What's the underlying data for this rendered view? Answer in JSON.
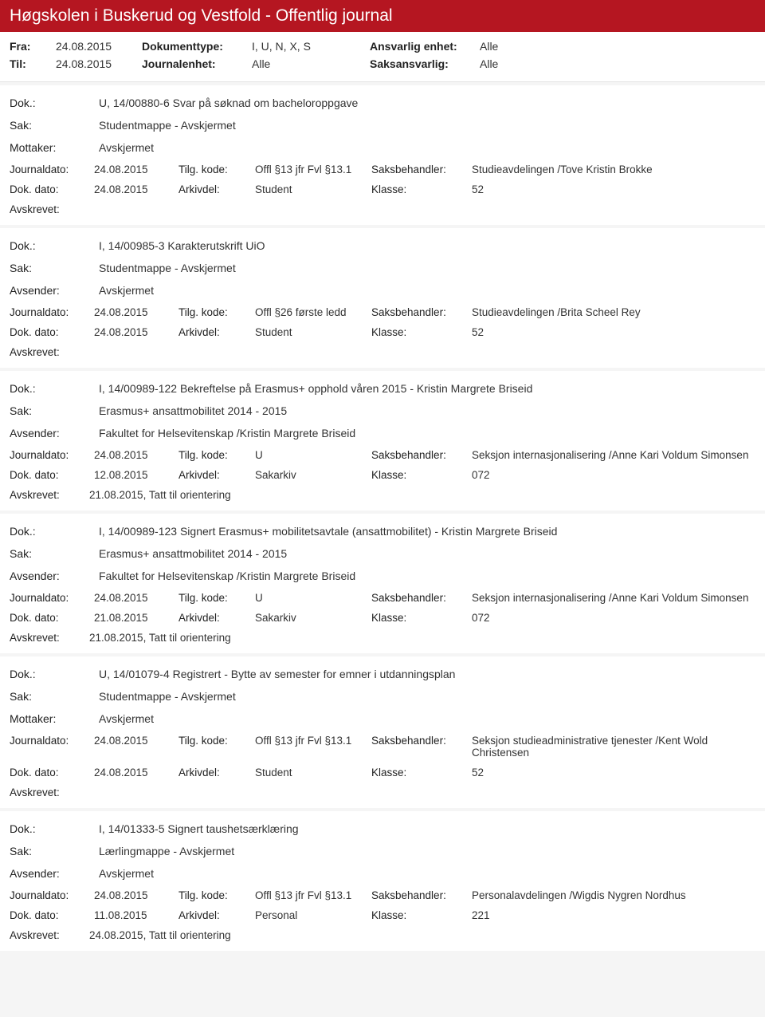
{
  "header": {
    "title": "Høgskolen i Buskerud og Vestfold - Offentlig journal"
  },
  "filter": {
    "fra_lbl": "Fra:",
    "fra_val": "24.08.2015",
    "til_lbl": "Til:",
    "til_val": "24.08.2015",
    "doktype_lbl": "Dokumenttype:",
    "doktype_val": "I, U, N, X, S",
    "journal_lbl": "Journalenhet:",
    "journal_val": "Alle",
    "ansvarlig_lbl": "Ansvarlig enhet:",
    "ansvarlig_val": "Alle",
    "saks_lbl": "Saksansvarlig:",
    "saks_val": "Alle"
  },
  "labels": {
    "dok": "Dok.:",
    "sak": "Sak:",
    "mottaker": "Mottaker:",
    "avsender": "Avsender:",
    "journaldato": "Journaldato:",
    "tilgkode": "Tilg. kode:",
    "saksbehandler": "Saksbehandler:",
    "dokdato": "Dok. dato:",
    "arkivdel": "Arkivdel:",
    "klasse": "Klasse:",
    "avskrevet": "Avskrevet:"
  },
  "records": [
    {
      "dok": "U, 14/00880-6 Svar på søknad om bacheloroppgave",
      "sak": "Studentmappe - Avskjermet",
      "partyLabel": "Mottaker:",
      "party": "Avskjermet",
      "journaldato": "24.08.2015",
      "tilgkode": "Offl §13 jfr Fvl §13.1",
      "saksbehandler": "Studieavdelingen /Tove Kristin Brokke",
      "dokdato": "24.08.2015",
      "arkivdel": "Student",
      "klasse": "52",
      "avskrevet": ""
    },
    {
      "dok": "I, 14/00985-3 Karakterutskrift UiO",
      "sak": "Studentmappe - Avskjermet",
      "partyLabel": "Avsender:",
      "party": "Avskjermet",
      "journaldato": "24.08.2015",
      "tilgkode": "Offl §26 første ledd",
      "saksbehandler": "Studieavdelingen /Brita Scheel Rey",
      "dokdato": "24.08.2015",
      "arkivdel": "Student",
      "klasse": "52",
      "avskrevet": ""
    },
    {
      "dok": "I, 14/00989-122 Bekreftelse på Erasmus+ opphold våren 2015 - Kristin Margrete Briseid",
      "sak": "Erasmus+ ansattmobilitet 2014 - 2015",
      "partyLabel": "Avsender:",
      "party": "Fakultet for Helsevitenskap /Kristin Margrete Briseid",
      "journaldato": "24.08.2015",
      "tilgkode": "U",
      "saksbehandler": "Seksjon internasjonalisering /Anne Kari Voldum Simonsen",
      "dokdato": "12.08.2015",
      "arkivdel": "Sakarkiv",
      "klasse": "072",
      "avskrevet": "21.08.2015, Tatt til orientering"
    },
    {
      "dok": "I, 14/00989-123 Signert Erasmus+ mobilitetsavtale (ansattmobilitet) - Kristin Margrete Briseid",
      "sak": "Erasmus+ ansattmobilitet 2014 - 2015",
      "partyLabel": "Avsender:",
      "party": "Fakultet for Helsevitenskap /Kristin Margrete Briseid",
      "journaldato": "24.08.2015",
      "tilgkode": "U",
      "saksbehandler": "Seksjon internasjonalisering /Anne Kari Voldum Simonsen",
      "dokdato": "21.08.2015",
      "arkivdel": "Sakarkiv",
      "klasse": "072",
      "avskrevet": "21.08.2015, Tatt til orientering"
    },
    {
      "dok": "U, 14/01079-4 Registrert - Bytte av semester for emner i utdanningsplan",
      "sak": "Studentmappe - Avskjermet",
      "partyLabel": "Mottaker:",
      "party": "Avskjermet",
      "journaldato": "24.08.2015",
      "tilgkode": "Offl §13 jfr Fvl §13.1",
      "saksbehandler": "Seksjon studieadministrative tjenester /Kent Wold Christensen",
      "dokdato": "24.08.2015",
      "arkivdel": "Student",
      "klasse": "52",
      "avskrevet": ""
    },
    {
      "dok": "I, 14/01333-5 Signert taushetsærklæring",
      "sak": "Lærlingmappe - Avskjermet",
      "partyLabel": "Avsender:",
      "party": "Avskjermet",
      "journaldato": "24.08.2015",
      "tilgkode": "Offl §13 jfr Fvl §13.1",
      "saksbehandler": "Personalavdelingen /Wigdis Nygren Nordhus",
      "dokdato": "11.08.2015",
      "arkivdel": "Personal",
      "klasse": "221",
      "avskrevet": "24.08.2015, Tatt til orientering"
    }
  ]
}
